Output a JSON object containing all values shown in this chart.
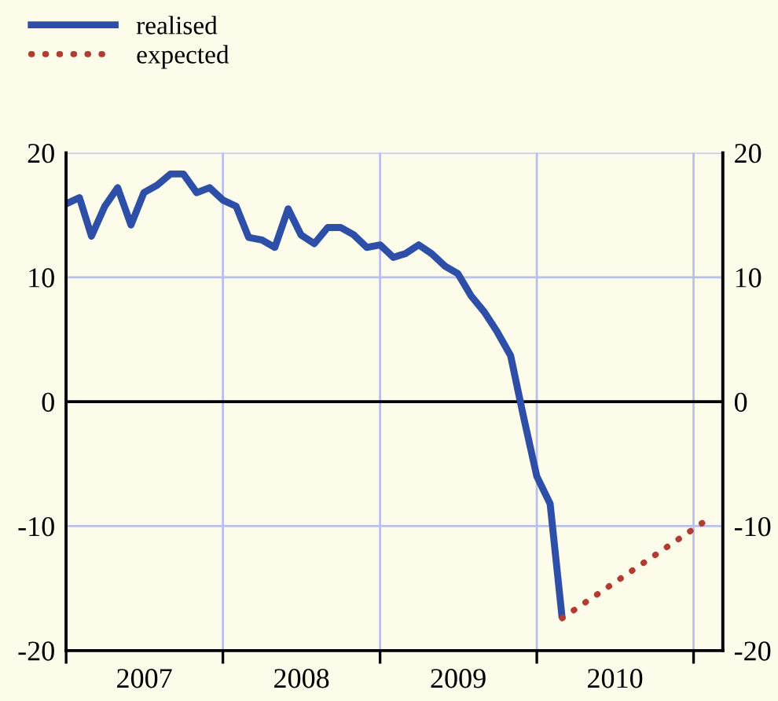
{
  "chart_data": {
    "type": "line",
    "x": [
      "2007-01",
      "2007-02",
      "2007-03",
      "2007-04",
      "2007-05",
      "2007-06",
      "2007-07",
      "2007-08",
      "2007-09",
      "2007-10",
      "2007-11",
      "2007-12",
      "2008-01",
      "2008-02",
      "2008-03",
      "2008-04",
      "2008-05",
      "2008-06",
      "2008-07",
      "2008-08",
      "2008-09",
      "2008-10",
      "2008-11",
      "2008-12",
      "2009-01",
      "2009-02",
      "2009-03",
      "2009-04",
      "2009-05",
      "2009-06",
      "2009-07",
      "2009-08",
      "2009-09",
      "2009-10",
      "2009-11",
      "2009-12",
      "2010-01",
      "2010-02",
      "2010-03"
    ],
    "series": [
      {
        "name": "realised",
        "color": "#2e4fa8",
        "line_style": "solid",
        "values": [
          15.9,
          16.4,
          13.3,
          15.7,
          17.2,
          14.2,
          16.8,
          17.4,
          18.3,
          18.3,
          16.8,
          17.2,
          16.2,
          15.7,
          13.2,
          13.0,
          12.4,
          15.5,
          13.4,
          12.7,
          14.0,
          14.0,
          13.4,
          12.4,
          12.6,
          11.6,
          11.9,
          12.6,
          11.9,
          10.9,
          10.3,
          8.5,
          7.2,
          5.6,
          3.7,
          -1.2,
          -6.0,
          -8.2,
          -17.4
        ]
      },
      {
        "name": "expected",
        "color": "#b23b32",
        "line_style": "dotted",
        "x": [
          "2010-03",
          "2011-02"
        ],
        "values": [
          -17.4,
          -9.5
        ]
      }
    ],
    "xlim": [
      "2007-01-01",
      "2011-03-10"
    ],
    "xticks": [
      {
        "value": "2007-01-01",
        "label": null
      },
      {
        "value": "2007-07-02",
        "label": "2007"
      },
      {
        "value": "2008-01-01",
        "label": null
      },
      {
        "value": "2008-07-02",
        "label": "2008"
      },
      {
        "value": "2009-01-01",
        "label": null
      },
      {
        "value": "2009-07-02",
        "label": "2009"
      },
      {
        "value": "2010-01-01",
        "label": null
      },
      {
        "value": "2010-07-02",
        "label": "2010"
      },
      {
        "value": "2011-01-01",
        "label": null
      }
    ],
    "ylim": [
      -20,
      20
    ],
    "yticks": [
      -20,
      -10,
      0,
      10,
      20
    ],
    "y2lim": [
      -20,
      20
    ],
    "y2ticks": [
      -20,
      -10,
      0,
      10,
      20
    ],
    "ref_lines": [
      {
        "axis": "y",
        "value": 0,
        "color": "#000000"
      }
    ],
    "grid": true,
    "legend": "top left",
    "marker": "none"
  }
}
